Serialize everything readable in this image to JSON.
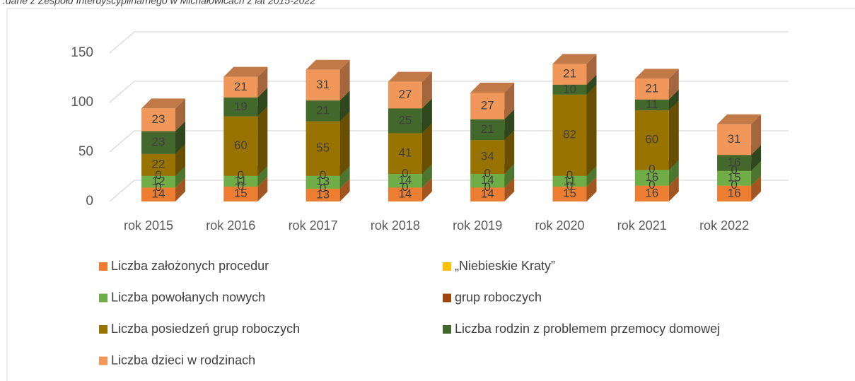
{
  "chart_data": {
    "type": "bar3d_stacked",
    "title": ".dane z Zespołu Interdyscyplinarnego w Michałowicach  z lat 2015-2022",
    "categories": [
      "rok 2015",
      "rok 2016",
      "rok 2017",
      "rok 2018",
      "rok 2019",
      "rok 2020",
      "rok 2021",
      "rok 2022"
    ],
    "series": [
      {
        "name": "Liczba założonych procedur",
        "color": "#ED7D31",
        "values": [
          14,
          15,
          13,
          14,
          14,
          15,
          16,
          16
        ]
      },
      {
        "name": "„Niebieskie Kraty”",
        "color": "#FFC000",
        "values": [
          0,
          0,
          0,
          0,
          0,
          0,
          0,
          0
        ]
      },
      {
        "name": "Liczba powołanych nowych",
        "color": "#70AD47",
        "values": [
          12,
          11,
          13,
          14,
          14,
          11,
          16,
          15
        ]
      },
      {
        "name": "grup roboczych",
        "color": "#9E480E",
        "values": [
          0,
          0,
          0,
          0,
          0,
          0,
          0,
          0
        ]
      },
      {
        "name": "Liczba posiedzeń grup roboczych",
        "color": "#997300",
        "values": [
          22,
          60,
          55,
          41,
          34,
          82,
          60,
          0
        ]
      },
      {
        "name": "Liczba rodzin z problemem przemocy domowej",
        "color": "#43682B",
        "values": [
          23,
          19,
          21,
          25,
          21,
          10,
          11,
          16
        ]
      },
      {
        "name": "Liczba dzieci w rodzinach",
        "color": "#F1975A",
        "values": [
          23,
          21,
          31,
          27,
          27,
          21,
          21,
          31
        ]
      }
    ],
    "ylim": [
      0,
      150
    ],
    "yticks": [
      0,
      50,
      100,
      150
    ],
    "grid": true,
    "legend": "bottom"
  }
}
